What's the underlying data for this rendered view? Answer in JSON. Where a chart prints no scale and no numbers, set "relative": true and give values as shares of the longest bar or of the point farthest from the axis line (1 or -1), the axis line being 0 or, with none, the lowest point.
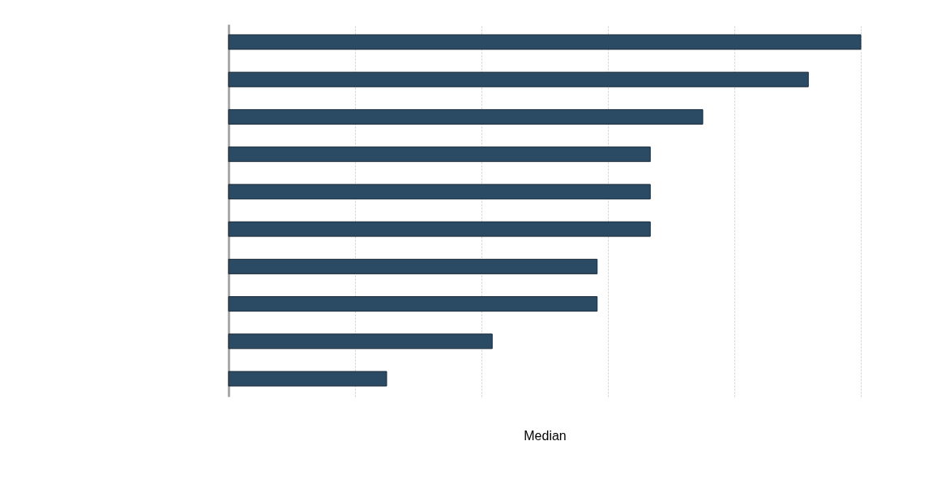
{
  "chart_data": {
    "type": "bar",
    "orientation": "horizontal",
    "relative": true,
    "categories": [
      null,
      null,
      null,
      null,
      null,
      null,
      null,
      null,
      null,
      null
    ],
    "values": [
      1,
      0.917,
      0.75,
      0.667,
      0.667,
      0.667,
      0.583,
      0.583,
      0.417,
      0.25
    ],
    "color": "#2b4a63",
    "xlabel": "Median",
    "grid": "x"
  }
}
